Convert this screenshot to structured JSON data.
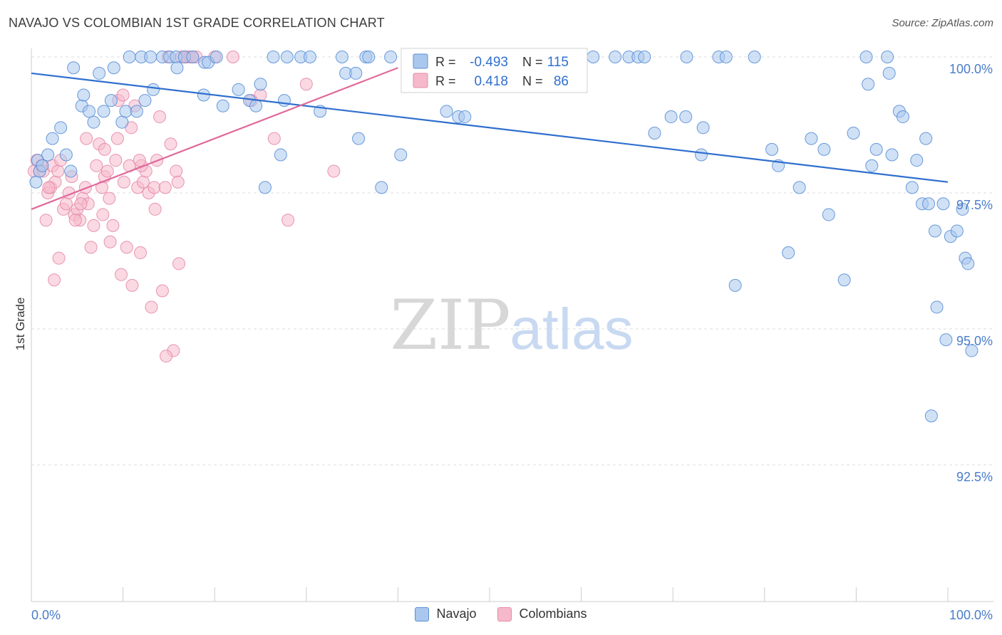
{
  "header": {
    "title": "NAVAJO VS COLOMBIAN 1ST GRADE CORRELATION CHART",
    "source": "Source: ZipAtlas.com"
  },
  "watermark": {
    "part1": "ZIP",
    "part2": "atlas"
  },
  "colors": {
    "navajo_fill": "#aac8ee",
    "navajo_stroke": "#5a8fd6",
    "navajo_line": "#2f6fcf",
    "colombian_fill": "#f6b9cc",
    "colombian_stroke": "#e58aa8",
    "colombian_line": "#e0699a",
    "grid": "#dddddd",
    "axis_label": "#4a7cc9"
  },
  "legend_box": {
    "navajo": {
      "r_label": "R =",
      "r_value": "-0.493",
      "n_label": "N =",
      "n_value": "115"
    },
    "colombian": {
      "r_label": "R =",
      "r_value": "0.418",
      "n_label": "N =",
      "n_value": "86"
    }
  },
  "chart_data": {
    "type": "scatter",
    "title": "NAVAJO VS COLOMBIAN 1ST GRADE CORRELATION CHART",
    "xlabel": "",
    "ylabel": "1st Grade",
    "xlim": [
      0,
      100
    ],
    "ylim": [
      89.5,
      100.2
    ],
    "x_tick_labels": [
      "0.0%",
      "100.0%"
    ],
    "y_ticks": [
      100.0,
      97.5,
      95.0,
      92.5
    ],
    "y_tick_labels": [
      "100.0%",
      "97.5%",
      "95.0%",
      "92.5%"
    ],
    "grid": true,
    "legend_position": "bottom",
    "series": [
      {
        "name": "Navajo",
        "trend": {
          "x": [
            0,
            100
          ],
          "y": [
            99.7,
            97.7
          ]
        },
        "points": [
          [
            0.5,
            97.7
          ],
          [
            0.7,
            98.1
          ],
          [
            0.9,
            97.9
          ],
          [
            1.2,
            98.0
          ],
          [
            1.8,
            98.2
          ],
          [
            2.3,
            98.5
          ],
          [
            3.2,
            98.7
          ],
          [
            3.8,
            98.2
          ],
          [
            4.3,
            97.9
          ],
          [
            4.6,
            99.8
          ],
          [
            5.5,
            99.1
          ],
          [
            5.7,
            99.3
          ],
          [
            6.3,
            99.0
          ],
          [
            6.8,
            98.8
          ],
          [
            7.4,
            99.7
          ],
          [
            7.9,
            99.0
          ],
          [
            8.7,
            99.2
          ],
          [
            9.0,
            99.8
          ],
          [
            9.9,
            98.8
          ],
          [
            10.3,
            99.0
          ],
          [
            10.7,
            100.0
          ],
          [
            11.5,
            99.0
          ],
          [
            12.0,
            100.0
          ],
          [
            12.4,
            99.2
          ],
          [
            13.0,
            100.0
          ],
          [
            13.3,
            99.4
          ],
          [
            14.3,
            100.0
          ],
          [
            15.1,
            100.0
          ],
          [
            15.8,
            100.0
          ],
          [
            15.9,
            99.8
          ],
          [
            16.7,
            100.0
          ],
          [
            17.6,
            100.0
          ],
          [
            18.8,
            99.3
          ],
          [
            18.9,
            99.9
          ],
          [
            19.3,
            99.9
          ],
          [
            20.2,
            100.0
          ],
          [
            20.9,
            99.1
          ],
          [
            22.6,
            99.4
          ],
          [
            23.8,
            99.2
          ],
          [
            24.5,
            99.1
          ],
          [
            25.0,
            99.5
          ],
          [
            25.5,
            97.6
          ],
          [
            26.4,
            100.0
          ],
          [
            27.2,
            98.2
          ],
          [
            27.6,
            99.2
          ],
          [
            27.9,
            100.0
          ],
          [
            29.4,
            100.0
          ],
          [
            30.4,
            100.0
          ],
          [
            31.5,
            99.0
          ],
          [
            33.9,
            100.0
          ],
          [
            34.3,
            99.7
          ],
          [
            35.4,
            99.7
          ],
          [
            35.7,
            98.5
          ],
          [
            36.5,
            100.0
          ],
          [
            36.8,
            100.0
          ],
          [
            38.2,
            97.6
          ],
          [
            39.2,
            100.0
          ],
          [
            40.3,
            98.2
          ],
          [
            42.0,
            100.0
          ],
          [
            43.8,
            100.0
          ],
          [
            45.3,
            99.0
          ],
          [
            46.6,
            98.9
          ],
          [
            47.3,
            98.9
          ],
          [
            52.0,
            100.0
          ],
          [
            53.4,
            100.0
          ],
          [
            55.4,
            100.0
          ],
          [
            57.7,
            99.8
          ],
          [
            58.5,
            100.0
          ],
          [
            59.5,
            100.0
          ],
          [
            61.3,
            100.0
          ],
          [
            63.7,
            100.0
          ],
          [
            65.2,
            100.0
          ],
          [
            66.2,
            100.0
          ],
          [
            66.9,
            100.0
          ],
          [
            68.0,
            98.6
          ],
          [
            69.8,
            98.9
          ],
          [
            71.4,
            98.9
          ],
          [
            71.5,
            100.0
          ],
          [
            73.1,
            98.2
          ],
          [
            73.3,
            98.7
          ],
          [
            75.0,
            100.0
          ],
          [
            75.8,
            100.0
          ],
          [
            76.8,
            95.8
          ],
          [
            78.9,
            100.0
          ],
          [
            80.8,
            98.3
          ],
          [
            81.5,
            98.0
          ],
          [
            82.6,
            96.4
          ],
          [
            83.8,
            97.6
          ],
          [
            85.1,
            98.5
          ],
          [
            86.5,
            98.3
          ],
          [
            87.0,
            97.1
          ],
          [
            88.7,
            95.9
          ],
          [
            89.7,
            98.6
          ],
          [
            91.1,
            100.0
          ],
          [
            91.3,
            99.5
          ],
          [
            91.7,
            98.0
          ],
          [
            92.2,
            98.3
          ],
          [
            93.4,
            100.0
          ],
          [
            93.6,
            99.7
          ],
          [
            93.9,
            98.2
          ],
          [
            94.7,
            99.0
          ],
          [
            95.1,
            98.9
          ],
          [
            96.1,
            97.6
          ],
          [
            96.6,
            98.1
          ],
          [
            97.2,
            97.3
          ],
          [
            97.6,
            98.5
          ],
          [
            97.9,
            97.3
          ],
          [
            98.2,
            93.4
          ],
          [
            98.6,
            96.8
          ],
          [
            98.8,
            95.4
          ],
          [
            99.5,
            97.3
          ],
          [
            99.8,
            94.8
          ],
          [
            100.3,
            96.7
          ],
          [
            101.0,
            96.8
          ],
          [
            101.6,
            97.2
          ],
          [
            101.9,
            96.3
          ],
          [
            102.2,
            96.2
          ],
          [
            102.6,
            94.6
          ]
        ]
      },
      {
        "name": "Colombians",
        "trend": {
          "x": [
            0,
            40
          ],
          "y": [
            97.2,
            99.8
          ]
        },
        "points": [
          [
            0.3,
            97.9
          ],
          [
            0.6,
            98.1
          ],
          [
            0.9,
            97.9
          ],
          [
            1.1,
            98.0
          ],
          [
            1.3,
            97.9
          ],
          [
            1.6,
            97.0
          ],
          [
            1.8,
            97.5
          ],
          [
            2.1,
            97.6
          ],
          [
            2.3,
            98.0
          ],
          [
            2.6,
            97.7
          ],
          [
            2.9,
            97.9
          ],
          [
            3.2,
            98.1
          ],
          [
            3.5,
            97.2
          ],
          [
            3.8,
            97.3
          ],
          [
            4.1,
            97.5
          ],
          [
            4.4,
            97.8
          ],
          [
            4.7,
            97.1
          ],
          [
            5.0,
            97.2
          ],
          [
            5.3,
            97.0
          ],
          [
            5.6,
            97.4
          ],
          [
            5.9,
            97.6
          ],
          [
            6.2,
            97.3
          ],
          [
            6.5,
            96.5
          ],
          [
            6.8,
            96.9
          ],
          [
            7.1,
            98.0
          ],
          [
            7.4,
            98.4
          ],
          [
            7.7,
            97.6
          ],
          [
            8.0,
            97.8
          ],
          [
            8.3,
            97.9
          ],
          [
            8.6,
            96.6
          ],
          [
            8.9,
            96.9
          ],
          [
            9.2,
            98.1
          ],
          [
            9.5,
            99.2
          ],
          [
            9.8,
            96.0
          ],
          [
            10.1,
            97.7
          ],
          [
            10.4,
            96.5
          ],
          [
            10.7,
            98.0
          ],
          [
            11.0,
            95.8
          ],
          [
            11.3,
            99.1
          ],
          [
            11.6,
            97.6
          ],
          [
            11.9,
            96.4
          ],
          [
            12.2,
            97.7
          ],
          [
            12.5,
            97.9
          ],
          [
            12.8,
            97.5
          ],
          [
            13.1,
            95.4
          ],
          [
            13.4,
            97.6
          ],
          [
            13.7,
            98.1
          ],
          [
            14.0,
            98.9
          ],
          [
            14.3,
            95.7
          ],
          [
            14.6,
            97.6
          ],
          [
            14.9,
            100.0
          ],
          [
            15.2,
            98.4
          ],
          [
            15.5,
            94.6
          ],
          [
            15.8,
            97.9
          ],
          [
            16.1,
            96.2
          ],
          [
            16.4,
            100.0
          ],
          [
            16.7,
            100.0
          ],
          [
            17.0,
            100.0
          ],
          [
            17.3,
            100.0
          ],
          [
            17.6,
            100.0
          ],
          [
            18.0,
            100.0
          ],
          [
            22.0,
            100.0
          ],
          [
            25.0,
            99.3
          ],
          [
            28.0,
            97.0
          ],
          [
            30.0,
            99.5
          ],
          [
            33.0,
            97.9
          ],
          [
            6.0,
            98.5
          ],
          [
            8.0,
            98.3
          ],
          [
            9.4,
            98.5
          ],
          [
            10.9,
            98.7
          ],
          [
            12.0,
            98.0
          ],
          [
            13.5,
            97.2
          ],
          [
            2.5,
            95.9
          ],
          [
            4.8,
            97.0
          ],
          [
            7.8,
            97.1
          ],
          [
            3.0,
            96.3
          ],
          [
            14.7,
            94.5
          ],
          [
            5.4,
            97.3
          ],
          [
            1.9,
            97.6
          ],
          [
            8.5,
            97.4
          ],
          [
            10.0,
            99.3
          ],
          [
            11.8,
            98.1
          ],
          [
            16.0,
            97.7
          ],
          [
            20.0,
            100.0
          ],
          [
            24.0,
            99.2
          ],
          [
            26.5,
            98.5
          ]
        ]
      }
    ]
  }
}
